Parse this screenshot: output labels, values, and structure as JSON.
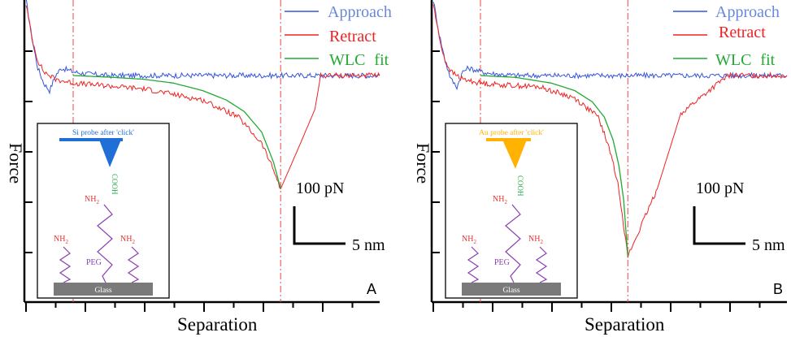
{
  "colors": {
    "approach": "#3355dd",
    "retract": "#ee2222",
    "wlc": "#22aa33",
    "legend_approach_text": "#6688dd",
    "legend_retract_text": "#ee2222",
    "legend_wlc_text": "#22aa33",
    "marker_line": "#ee4444",
    "glass": "#7a7a7a",
    "peg": "#8a3fb0",
    "nh2": "#dd3333",
    "cooh": "#22aa44",
    "si_probe": "#1f6fd6",
    "au_probe": "#ffb300"
  },
  "chart_data": [
    {
      "type": "line",
      "panel_label": "A",
      "xlabel": "Separation",
      "ylabel": "Force",
      "xlim": [
        0,
        60
      ],
      "ylim": [
        -600,
        200
      ],
      "grid": false,
      "legend_position": "top-right",
      "series": [
        {
          "name": "Approach",
          "x": [
            0,
            1,
            2,
            3,
            4,
            5,
            6,
            8,
            10,
            14,
            20,
            30,
            40,
            50,
            60
          ],
          "y": [
            200,
            100,
            20,
            -20,
            -40,
            0,
            20,
            10,
            5,
            0,
            0,
            0,
            0,
            0,
            0
          ]
        },
        {
          "name": "Retract",
          "x": [
            0,
            1,
            2,
            3,
            5,
            8,
            12,
            20,
            30,
            36,
            40,
            42,
            43.2,
            46,
            49,
            50,
            55,
            60
          ],
          "y": [
            190,
            100,
            40,
            10,
            -10,
            -20,
            -25,
            -35,
            -65,
            -110,
            -180,
            -250,
            -300,
            -200,
            -90,
            0,
            0,
            0
          ]
        },
        {
          "name": "WLC fit",
          "x": [
            8,
            15,
            20,
            25,
            30,
            34,
            37,
            40,
            42,
            43.2
          ],
          "y": [
            0,
            -5,
            -10,
            -20,
            -40,
            -65,
            -95,
            -150,
            -230,
            -300
          ]
        }
      ],
      "annotations": {
        "vertical_markers_x": [
          8,
          43.2
        ],
        "scale_bar_force": "100 pN",
        "scale_bar_distance": "5 nm"
      }
    },
    {
      "type": "line",
      "panel_label": "B",
      "xlabel": "Separation",
      "ylabel": "Force",
      "xlim": [
        0,
        60
      ],
      "ylim": [
        -600,
        200
      ],
      "grid": false,
      "legend_position": "top-right",
      "series": [
        {
          "name": "Approach",
          "x": [
            0,
            1,
            2,
            3,
            4,
            5,
            6,
            8,
            10,
            14,
            20,
            30,
            40,
            50,
            60
          ],
          "y": [
            200,
            110,
            40,
            -10,
            -30,
            10,
            20,
            10,
            5,
            0,
            0,
            0,
            0,
            0,
            0
          ]
        },
        {
          "name": "Retract",
          "x": [
            0,
            1,
            2,
            3,
            5,
            8,
            12,
            18,
            24,
            28,
            30,
            31.5,
            33,
            38,
            42,
            50,
            60
          ],
          "y": [
            190,
            100,
            40,
            10,
            -10,
            -20,
            -25,
            -30,
            -60,
            -110,
            -200,
            -300,
            -480,
            -300,
            -100,
            0,
            0
          ]
        },
        {
          "name": "WLC fit",
          "x": [
            8,
            14,
            20,
            24,
            27,
            29,
            30.5,
            31.5,
            32.3,
            33
          ],
          "y": [
            0,
            -5,
            -20,
            -40,
            -70,
            -110,
            -170,
            -240,
            -330,
            -480
          ]
        }
      ],
      "annotations": {
        "vertical_markers_x": [
          8,
          33
        ],
        "scale_bar_force": "100 pN",
        "scale_bar_distance": "5 nm"
      }
    }
  ],
  "insets": [
    {
      "probe_label": "Si probe after 'click'",
      "cooh": "COOH",
      "linker_nh2": "NH",
      "left_nh2": "NH",
      "right_nh2": "NH",
      "peg": "PEG",
      "glass": "Glass"
    },
    {
      "probe_label": "Au probe after 'click'",
      "cooh": "COOH",
      "linker_nh2": "NH",
      "left_nh2": "NH",
      "right_nh2": "NH",
      "peg": "PEG",
      "glass": "Glass"
    }
  ],
  "subscript_two": "2"
}
